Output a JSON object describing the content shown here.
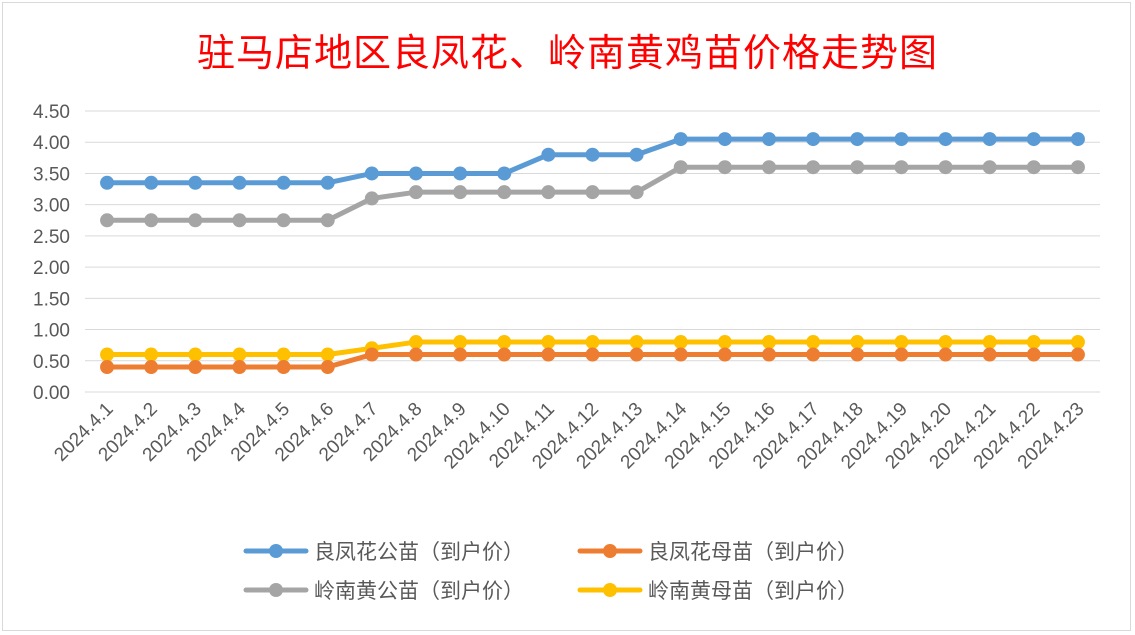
{
  "colors": {
    "series": [
      "#5b9bd5",
      "#ed7d31",
      "#a5a5a5",
      "#ffc000"
    ],
    "grid": "#d9d9d9",
    "axis_text": "#595959",
    "title": "#ff0000"
  },
  "chart_data": {
    "type": "line",
    "title": "驻马店地区良凤花、岭南黄鸡苗价格走势图",
    "xlabel": "",
    "ylabel": "",
    "ylim": [
      0,
      4.5
    ],
    "y_ticks": [
      "0.00",
      "0.50",
      "1.00",
      "1.50",
      "2.00",
      "2.50",
      "3.00",
      "3.50",
      "4.00",
      "4.50"
    ],
    "grid": true,
    "legend_position": "bottom",
    "categories": [
      "2024.4.1",
      "2024.4.2",
      "2024.4.3",
      "2024.4.4",
      "2024.4.5",
      "2024.4.6",
      "2024.4.7",
      "2024.4.8",
      "2024.4.9",
      "2024.4.10",
      "2024.4.11",
      "2024.4.12",
      "2024.4.13",
      "2024.4.14",
      "2024.4.15",
      "2024.4.16",
      "2024.4.17",
      "2024.4.18",
      "2024.4.19",
      "2024.4.20",
      "2024.4.21",
      "2024.4.22",
      "2024.4.23"
    ],
    "series": [
      {
        "name": "良凤花公苗（到户价）",
        "values": [
          3.35,
          3.35,
          3.35,
          3.35,
          3.35,
          3.35,
          3.5,
          3.5,
          3.5,
          3.5,
          3.8,
          3.8,
          3.8,
          4.05,
          4.05,
          4.05,
          4.05,
          4.05,
          4.05,
          4.05,
          4.05,
          4.05,
          4.05
        ]
      },
      {
        "name": "良凤花母苗（到户价）",
        "values": [
          0.4,
          0.4,
          0.4,
          0.4,
          0.4,
          0.4,
          0.6,
          0.6,
          0.6,
          0.6,
          0.6,
          0.6,
          0.6,
          0.6,
          0.6,
          0.6,
          0.6,
          0.6,
          0.6,
          0.6,
          0.6,
          0.6,
          0.6
        ]
      },
      {
        "name": "岭南黄公苗（到户价）",
        "values": [
          2.75,
          2.75,
          2.75,
          2.75,
          2.75,
          2.75,
          3.1,
          3.2,
          3.2,
          3.2,
          3.2,
          3.2,
          3.2,
          3.6,
          3.6,
          3.6,
          3.6,
          3.6,
          3.6,
          3.6,
          3.6,
          3.6,
          3.6
        ]
      },
      {
        "name": "岭南黄母苗（到户价）",
        "values": [
          0.6,
          0.6,
          0.6,
          0.6,
          0.6,
          0.6,
          0.7,
          0.8,
          0.8,
          0.8,
          0.8,
          0.8,
          0.8,
          0.8,
          0.8,
          0.8,
          0.8,
          0.8,
          0.8,
          0.8,
          0.8,
          0.8,
          0.8
        ]
      }
    ]
  }
}
